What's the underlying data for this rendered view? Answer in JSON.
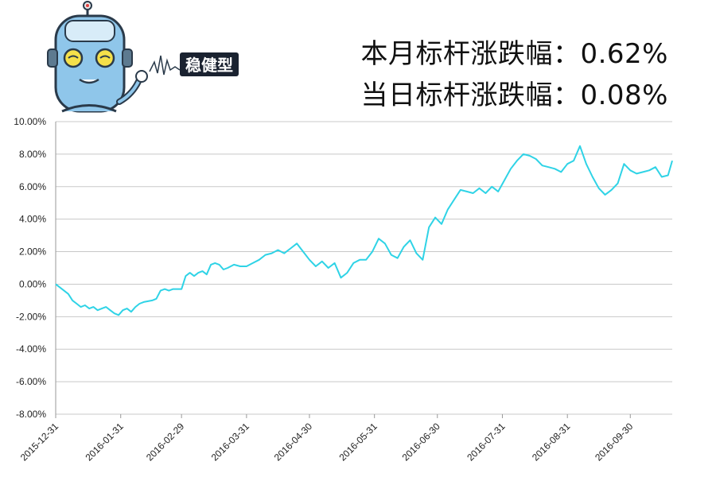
{
  "header": {
    "badge_text": "稳健型",
    "month_line": "本月标杆涨跌幅：0.62%",
    "day_line": "当日标杆涨跌幅：0.08%"
  },
  "colors": {
    "line": "#2fd3e6",
    "grid": "#c8c8c8",
    "axis": "#999999",
    "robot_body": "#8fc6ea",
    "robot_outline": "#2a3a4a",
    "eyes": "#f5e04a",
    "badge_bg": "#1a2230"
  },
  "icons": {
    "mascot": "robot-mascot-icon"
  },
  "chart_data": {
    "type": "line",
    "title": "",
    "xlabel": "",
    "ylabel": "",
    "ylim": [
      -8,
      10
    ],
    "yticks": [
      10,
      8,
      6,
      4,
      2,
      0,
      -2,
      -4,
      -6,
      -8
    ],
    "ytick_labels": [
      "10.00%",
      "8.00%",
      "6.00%",
      "4.00%",
      "2.00%",
      "0.00%",
      "-2.00%",
      "-4.00%",
      "-6.00%",
      "-8.00%"
    ],
    "xtick_labels": [
      "2015-12-31",
      "2016-01-31",
      "2016-02-29",
      "2016-03-31",
      "2016-04-30",
      "2016-05-31",
      "2016-06-30",
      "2016-07-31",
      "2016-08-31",
      "2016-09-30"
    ],
    "xlim": [
      "2015-12-31",
      "2016-10-20"
    ],
    "grid": true,
    "series": [
      {
        "x": [
          "2015-12-31",
          "2016-01-04",
          "2016-01-06",
          "2016-01-08",
          "2016-01-10",
          "2016-01-12",
          "2016-01-14",
          "2016-01-16",
          "2016-01-18",
          "2016-01-20",
          "2016-01-22",
          "2016-01-24",
          "2016-01-26",
          "2016-01-28",
          "2016-01-30",
          "2016-02-01",
          "2016-02-03",
          "2016-02-05",
          "2016-02-07",
          "2016-02-09",
          "2016-02-11",
          "2016-02-15",
          "2016-02-17",
          "2016-02-19",
          "2016-02-21",
          "2016-02-23",
          "2016-02-25",
          "2016-02-27",
          "2016-02-29",
          "2016-03-02",
          "2016-03-04",
          "2016-03-06",
          "2016-03-08",
          "2016-03-10",
          "2016-03-12",
          "2016-03-14",
          "2016-03-16",
          "2016-03-18",
          "2016-03-20",
          "2016-03-22",
          "2016-03-25",
          "2016-03-28",
          "2016-03-31",
          "2016-04-03",
          "2016-04-06",
          "2016-04-09",
          "2016-04-12",
          "2016-04-15",
          "2016-04-18",
          "2016-04-21",
          "2016-04-24",
          "2016-04-27",
          "2016-04-30",
          "2016-05-03",
          "2016-05-06",
          "2016-05-09",
          "2016-05-12",
          "2016-05-15",
          "2016-05-18",
          "2016-05-21",
          "2016-05-24",
          "2016-05-27",
          "2016-05-30",
          "2016-06-02",
          "2016-06-05",
          "2016-06-08",
          "2016-06-11",
          "2016-06-14",
          "2016-06-17",
          "2016-06-20",
          "2016-06-23",
          "2016-06-26",
          "2016-06-29",
          "2016-07-02",
          "2016-07-05",
          "2016-07-08",
          "2016-07-11",
          "2016-07-14",
          "2016-07-17",
          "2016-07-20",
          "2016-07-23",
          "2016-07-26",
          "2016-07-29",
          "2016-08-01",
          "2016-08-04",
          "2016-08-07",
          "2016-08-10",
          "2016-08-13",
          "2016-08-16",
          "2016-08-19",
          "2016-08-22",
          "2016-08-25",
          "2016-08-28",
          "2016-08-31",
          "2016-09-03",
          "2016-09-06",
          "2016-09-09",
          "2016-09-12",
          "2016-09-15",
          "2016-09-18",
          "2016-09-21",
          "2016-09-24",
          "2016-09-27",
          "2016-09-30",
          "2016-10-03",
          "2016-10-06",
          "2016-10-09",
          "2016-10-12",
          "2016-10-15",
          "2016-10-18",
          "2016-10-20"
        ],
        "values": [
          0.0,
          -0.4,
          -0.6,
          -1.0,
          -1.2,
          -1.4,
          -1.3,
          -1.5,
          -1.4,
          -1.6,
          -1.5,
          -1.4,
          -1.6,
          -1.8,
          -1.9,
          -1.6,
          -1.5,
          -1.7,
          -1.4,
          -1.2,
          -1.1,
          -1.0,
          -0.9,
          -0.4,
          -0.3,
          -0.4,
          -0.3,
          -0.3,
          -0.3,
          0.5,
          0.7,
          0.5,
          0.7,
          0.8,
          0.6,
          1.2,
          1.3,
          1.2,
          0.9,
          1.0,
          1.2,
          1.1,
          1.1,
          1.3,
          1.5,
          1.8,
          1.9,
          2.1,
          1.9,
          2.2,
          2.5,
          2.0,
          1.5,
          1.1,
          1.4,
          1.0,
          1.3,
          0.4,
          0.7,
          1.3,
          1.5,
          1.5,
          2.0,
          2.8,
          2.5,
          1.8,
          1.6,
          2.3,
          2.7,
          1.9,
          1.5,
          3.5,
          4.1,
          3.7,
          4.6,
          5.2,
          5.8,
          5.7,
          5.6,
          5.9,
          5.6,
          6.0,
          5.7,
          6.4,
          7.1,
          7.6,
          8.0,
          7.9,
          7.7,
          7.3,
          7.2,
          7.1,
          6.9,
          7.4,
          7.6,
          8.5,
          7.4,
          6.6,
          5.9,
          5.5,
          5.8,
          6.2,
          7.4,
          7.0,
          6.8,
          6.9,
          7.0,
          7.2,
          6.6,
          6.7,
          7.6
        ]
      }
    ]
  }
}
